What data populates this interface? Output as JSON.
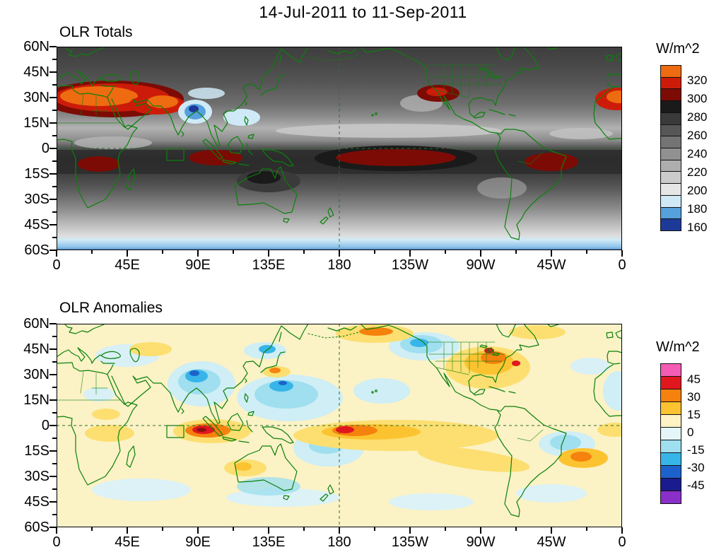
{
  "title": "14-Jul-2011 to 11-Sep-2011",
  "panels": [
    {
      "label": "OLR Totals",
      "units": "W/m^2"
    },
    {
      "label": "OLR Anomalies",
      "units": "W/m^2"
    }
  ],
  "axes": {
    "lat_labels": [
      "60N",
      "45N",
      "30N",
      "15N",
      "0",
      "15S",
      "30S",
      "45S",
      "60S"
    ],
    "lon_labels": [
      "0",
      "45E",
      "90E",
      "135E",
      "180",
      "135W",
      "90W",
      "45W",
      "0"
    ]
  },
  "chart_data": [
    {
      "type": "heatmap",
      "title": "OLR Totals",
      "period": "14-Jul-2011 to 11-Sep-2011",
      "units": "W/m^2",
      "projection": "global cylindrical map, 60N-60S, longitude 0 eastward through 180 back to 0 (dateline at center)",
      "lat_ticks": [
        "60N",
        "45N",
        "30N",
        "15N",
        "0",
        "15S",
        "30S",
        "45S",
        "60S"
      ],
      "lon_ticks": [
        "0",
        "45E",
        "90E",
        "135E",
        "180",
        "135W",
        "90W",
        "45W",
        "0"
      ],
      "colorbar": {
        "ticks": [
          320,
          300,
          280,
          260,
          240,
          220,
          200,
          180,
          160
        ],
        "colors": [
          "#ee6b11",
          "#cc1c09",
          "#7d0b05",
          "#1a1a1a",
          "#3a3a3a",
          "#575757",
          "#747474",
          "#919191",
          "#aeaeae",
          "#cbcbcb",
          "#e6e6e6",
          "#cfeaf6",
          "#56a0dc",
          "#1d3a99"
        ]
      },
      "features": [
        {
          "region": "Sahara / Arabian Peninsula (15N-35N, 0-60E)",
          "value_wm2": "300-330 (very high OLR)"
        },
        {
          "region": "Northwest Mexico / southwest US",
          "value_wm2": "290-310"
        },
        {
          "region": "India / Bay of Bengal monsoon region (15N-25N, 70-95E)",
          "value_wm2": "160-200 (deep convection)"
        },
        {
          "region": "Tibetan Plateau",
          "value_wm2": "190-210"
        },
        {
          "region": "Equatorial band 0-15S over Indian Ocean, central Pacific, southern Africa, South America",
          "value_wm2": "280-300"
        },
        {
          "region": "ITCZ ~5-10N across Pacific and Atlantic",
          "value_wm2": "200-230 (light band)"
        },
        {
          "region": "Southern Ocean 50-60S",
          "value_wm2": "160-190 (blue band)"
        },
        {
          "region": "Midlatitudes generally",
          "value_wm2": "220-280 (gray shades)"
        }
      ]
    },
    {
      "type": "heatmap",
      "title": "OLR Anomalies",
      "period": "14-Jul-2011 to 11-Sep-2011",
      "units": "W/m^2",
      "projection": "global cylindrical map, 60N-60S, longitude 0 eastward through 180 back to 0 (dateline at center)",
      "lat_ticks": [
        "60N",
        "45N",
        "30N",
        "15N",
        "0",
        "15S",
        "30S",
        "45S",
        "60S"
      ],
      "lon_ticks": [
        "0",
        "45E",
        "90E",
        "135E",
        "180",
        "135W",
        "90W",
        "45W",
        "0"
      ],
      "colorbar": {
        "ticks": [
          45,
          30,
          15,
          0,
          -15,
          -30,
          -45
        ],
        "colors": [
          "#f45cb6",
          "#e1171f",
          "#f5820d",
          "#fcc331",
          "#fdf3c4",
          "#e4f6f8",
          "#9fdfef",
          "#38b5e8",
          "#1d62cc",
          "#191b8e",
          "#8a30c9"
        ]
      },
      "features": [
        {
          "region": "Equatorial Indian Ocean near 90E, 0-10S",
          "value_wm2": "+30 to +45 (suppressed convection, red core)"
        },
        {
          "region": "India / Arabian Sea / Bay of Bengal",
          "value_wm2": "-15 to -45 (enhanced convection, blue with dark core)"
        },
        {
          "region": "Central equatorial Pacific near 180-150W, 0-10S",
          "value_wm2": "+15 to +30 (yellow/orange band with red core near dateline)"
        },
        {
          "region": "Western Pacific 10-30N (140E-180)",
          "value_wm2": "-15 to -30"
        },
        {
          "region": "Southwest Pacific near 170E-180, 5-20S",
          "value_wm2": "-15 to -30"
        },
        {
          "region": "Southern US / Texas / Mexico",
          "value_wm2": "+15 to +30"
        },
        {
          "region": "Northeast Pacific ~45-60N",
          "value_wm2": "-15 to -30"
        },
        {
          "region": "Background over most oceans/continents",
          "value_wm2": "-15 to +15 (cream / pale blue)"
        }
      ]
    }
  ],
  "colors": {
    "coastline_green": "#0b800b",
    "background": "#ffffff"
  }
}
